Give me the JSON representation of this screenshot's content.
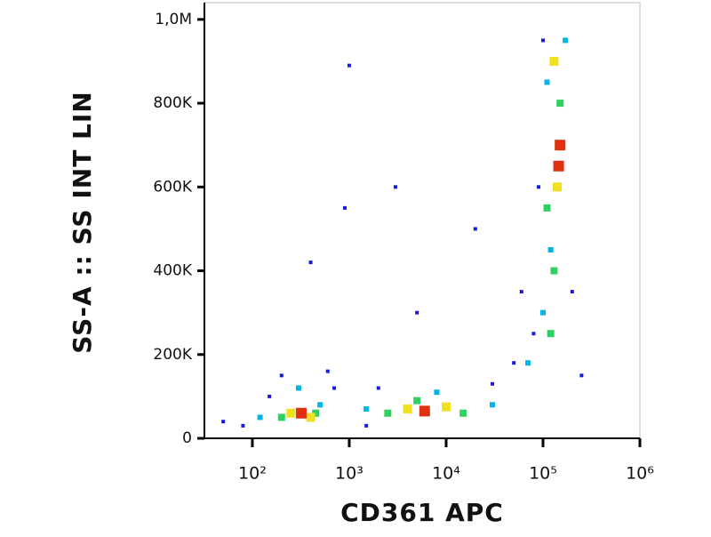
{
  "chart_data": {
    "type": "scatter",
    "x_label": "CD361 APC",
    "y_label": "SS-A :: SS INT LIN",
    "xscale": "log",
    "xlim": [
      32,
      1000000
    ],
    "xticks": [
      {
        "value": 100,
        "label": "10²"
      },
      {
        "value": 1000,
        "label": "10³"
      },
      {
        "value": 10000,
        "label": "10⁴"
      },
      {
        "value": 100000,
        "label": "10⁵"
      },
      {
        "value": 1000000,
        "label": "10⁶"
      }
    ],
    "ylim": [
      0,
      1040000
    ],
    "yticks": [
      0,
      {
        "value": 200000,
        "label": "200K"
      },
      {
        "value": 400000,
        "label": "400K"
      },
      {
        "value": 600000,
        "label": "600K"
      },
      {
        "value": 800000,
        "label": "800K"
      },
      {
        "value": 1000000,
        "label": "1,0M"
      }
    ],
    "series": [
      {
        "color": "#1a1adc",
        "x": [
          50,
          80,
          150,
          200,
          600,
          700,
          1500,
          2000,
          30000,
          50000,
          80000,
          60000,
          90000,
          100000,
          200000,
          250000,
          900,
          1000,
          400,
          5000,
          20000,
          3000
        ],
        "y": [
          40000,
          30000,
          100000,
          150000,
          160000,
          120000,
          30000,
          120000,
          130000,
          180000,
          250000,
          350000,
          600000,
          950000,
          350000,
          150000,
          550000,
          890000,
          420000,
          300000,
          500000,
          600000
        ]
      },
      {
        "color": "#00b4e6",
        "x": [
          120,
          500,
          300,
          1500,
          8000,
          30000,
          70000,
          100000,
          110000,
          170000,
          120000
        ],
        "y": [
          50000,
          80000,
          120000,
          70000,
          110000,
          80000,
          180000,
          300000,
          850000,
          950000,
          450000
        ]
      },
      {
        "color": "#30d060",
        "x": [
          200,
          450,
          2500,
          5000,
          15000,
          120000,
          130000,
          150000,
          110000
        ],
        "y": [
          50000,
          60000,
          60000,
          90000,
          60000,
          250000,
          400000,
          800000,
          550000
        ]
      },
      {
        "color": "#f0e020",
        "x": [
          250,
          400,
          4000,
          10000,
          140000,
          130000
        ],
        "y": [
          60000,
          50000,
          70000,
          75000,
          600000,
          900000
        ]
      },
      {
        "color": "#e03010",
        "x": [
          320,
          6000,
          150000,
          145000
        ],
        "y": [
          60000,
          65000,
          700000,
          650000
        ]
      }
    ]
  }
}
